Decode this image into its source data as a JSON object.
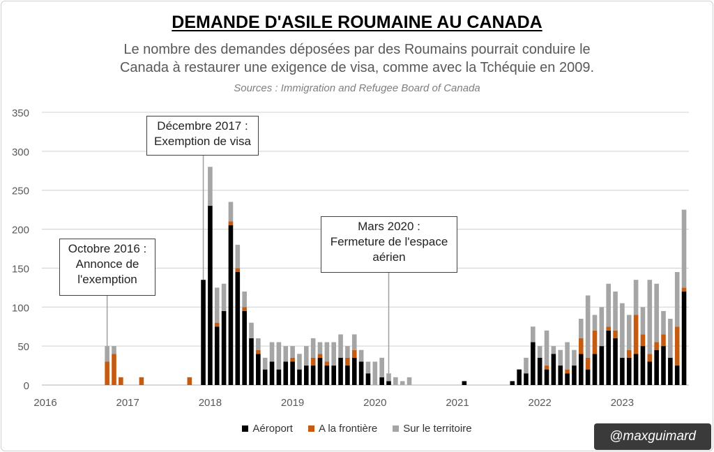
{
  "colors": {
    "aeroport": "#000000",
    "frontiere": "#c55a11",
    "territoire": "#a5a5a5",
    "grid": "#d9d9d9"
  },
  "header": {
    "title": "DEMANDE D'ASILE ROUMAINE AU CANADA",
    "subtitle_1": "Le nombre des demandes déposées par des Roumains pourrait conduire le",
    "subtitle_2": "Canada à restaurer une exigence de visa, comme avec la Tchéquie en 2009.",
    "sources": "Sources : Immigration and Refugee Board of Canada"
  },
  "annotations": [
    {
      "lines": [
        "Octobre 2016 :",
        "Annonce de",
        "l'exemption"
      ],
      "date": "2016-10"
    },
    {
      "lines": [
        "Décembre 2017 :",
        "Exemption de visa"
      ],
      "date": "2017-12"
    },
    {
      "lines": [
        "Mars 2020 :",
        "Fermeture de l'espace",
        "aérien"
      ],
      "date": "2020-03"
    }
  ],
  "watermark": "@maxguimard",
  "chart_data": {
    "type": "bar",
    "stacked": true,
    "x_unit": "month",
    "xlim": [
      "2016-01",
      "2023-12"
    ],
    "ylim": [
      0,
      350
    ],
    "yticks": [
      0,
      50,
      100,
      150,
      200,
      250,
      300,
      350
    ],
    "xticks": [
      "2016",
      "2017",
      "2018",
      "2019",
      "2020",
      "2021",
      "2022",
      "2023"
    ],
    "grid": true,
    "legend_position": "bottom",
    "series_names": [
      "Aéroport",
      "A la frontière",
      "Sur le territoire"
    ],
    "data": [
      [
        "2016-10",
        0,
        30,
        20
      ],
      [
        "2016-11",
        0,
        40,
        10
      ],
      [
        "2016-12",
        0,
        10,
        0
      ],
      [
        "2017-03",
        0,
        10,
        0
      ],
      [
        "2017-10",
        0,
        10,
        0
      ],
      [
        "2017-12",
        135,
        0,
        0
      ],
      [
        "2018-01",
        230,
        0,
        50
      ],
      [
        "2018-02",
        75,
        5,
        45
      ],
      [
        "2018-03",
        95,
        0,
        35
      ],
      [
        "2018-04",
        205,
        5,
        25
      ],
      [
        "2018-05",
        145,
        5,
        30
      ],
      [
        "2018-06",
        95,
        5,
        20
      ],
      [
        "2018-07",
        60,
        0,
        20
      ],
      [
        "2018-08",
        40,
        5,
        15
      ],
      [
        "2018-09",
        20,
        0,
        15
      ],
      [
        "2018-10",
        30,
        0,
        25
      ],
      [
        "2018-11",
        20,
        0,
        35
      ],
      [
        "2018-12",
        30,
        0,
        20
      ],
      [
        "2019-01",
        30,
        5,
        15
      ],
      [
        "2019-02",
        20,
        0,
        20
      ],
      [
        "2019-03",
        25,
        0,
        25
      ],
      [
        "2019-04",
        25,
        10,
        25
      ],
      [
        "2019-05",
        35,
        5,
        15
      ],
      [
        "2019-06",
        25,
        5,
        25
      ],
      [
        "2019-07",
        25,
        0,
        30
      ],
      [
        "2019-08",
        35,
        0,
        30
      ],
      [
        "2019-09",
        25,
        10,
        15
      ],
      [
        "2019-10",
        35,
        10,
        20
      ],
      [
        "2019-11",
        30,
        0,
        15
      ],
      [
        "2019-12",
        15,
        0,
        15
      ],
      [
        "2020-01",
        0,
        0,
        30
      ],
      [
        "2020-02",
        10,
        0,
        25
      ],
      [
        "2020-03",
        5,
        0,
        10
      ],
      [
        "2020-04",
        0,
        0,
        10
      ],
      [
        "2020-05",
        0,
        0,
        5
      ],
      [
        "2020-06",
        0,
        0,
        10
      ],
      [
        "2021-02",
        5,
        0,
        0
      ],
      [
        "2021-09",
        5,
        0,
        0
      ],
      [
        "2021-10",
        20,
        0,
        0
      ],
      [
        "2021-11",
        15,
        0,
        20
      ],
      [
        "2021-12",
        55,
        0,
        20
      ],
      [
        "2022-01",
        35,
        0,
        15
      ],
      [
        "2022-02",
        20,
        5,
        45
      ],
      [
        "2022-03",
        40,
        0,
        10
      ],
      [
        "2022-04",
        25,
        0,
        20
      ],
      [
        "2022-05",
        15,
        5,
        35
      ],
      [
        "2022-06",
        25,
        0,
        20
      ],
      [
        "2022-07",
        40,
        20,
        25
      ],
      [
        "2022-08",
        20,
        15,
        80
      ],
      [
        "2022-09",
        40,
        30,
        20
      ],
      [
        "2022-10",
        50,
        0,
        50
      ],
      [
        "2022-11",
        70,
        5,
        55
      ],
      [
        "2022-12",
        60,
        10,
        50
      ],
      [
        "2023-01",
        35,
        0,
        70
      ],
      [
        "2023-02",
        35,
        10,
        45
      ],
      [
        "2023-03",
        40,
        50,
        45
      ],
      [
        "2023-04",
        50,
        15,
        35
      ],
      [
        "2023-05",
        30,
        10,
        95
      ],
      [
        "2023-06",
        45,
        10,
        75
      ],
      [
        "2023-07",
        50,
        15,
        30
      ],
      [
        "2023-08",
        35,
        0,
        50
      ],
      [
        "2023-09",
        25,
        50,
        70
      ],
      [
        "2023-10",
        120,
        5,
        100
      ]
    ]
  }
}
